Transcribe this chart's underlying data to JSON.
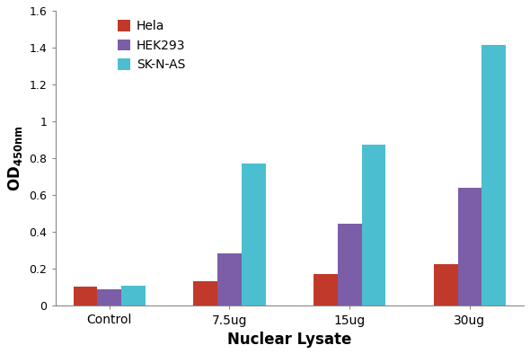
{
  "categories": [
    "Control",
    "7.5ug",
    "15ug",
    "30ug"
  ],
  "series": {
    "Hela": [
      0.105,
      0.135,
      0.175,
      0.228
    ],
    "HEK293": [
      0.09,
      0.285,
      0.445,
      0.638
    ],
    "SK-N-AS": [
      0.108,
      0.77,
      0.875,
      1.415
    ]
  },
  "colors": {
    "Hela": "#c0392b",
    "HEK293": "#7b5ea7",
    "SK-N-AS": "#4bbfcf"
  },
  "xlabel": "Nuclear Lysate",
  "ylim": [
    0,
    1.6
  ],
  "yticks": [
    0,
    0.2,
    0.4,
    0.6,
    0.8,
    1.0,
    1.2,
    1.4,
    1.6
  ],
  "bar_width": 0.2,
  "background_color": "#ffffff",
  "legend_labels": [
    "Hela",
    "HEK293",
    "SK-N-AS"
  ]
}
